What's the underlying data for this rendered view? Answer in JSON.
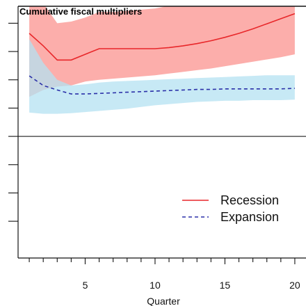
{
  "chart_data": {
    "type": "line",
    "title": "Cumulative fiscal multipliers",
    "xlabel": "Quarter",
    "ylabel": "",
    "xlim": [
      0.2,
      20.8
    ],
    "ylim": [
      -2.15,
      2.3
    ],
    "x_ticks": [
      5,
      10,
      15,
      20
    ],
    "x_minor_ticks": [
      1,
      2,
      3,
      4,
      5,
      6,
      7,
      8,
      9,
      10,
      11,
      12,
      13,
      14,
      15,
      16,
      17,
      18,
      19,
      20
    ],
    "y_ticks": [
      -1.5,
      -1.0,
      -0.5,
      0.0,
      0.5,
      1.0,
      1.5,
      2.0
    ],
    "zero_line": 0,
    "grid": false,
    "legend_position": "bottom-right",
    "x": [
      1,
      2,
      3,
      4,
      5,
      6,
      7,
      8,
      9,
      10,
      11,
      12,
      13,
      14,
      15,
      16,
      17,
      18,
      19,
      20
    ],
    "series": [
      {
        "name": "Recession",
        "style": "solid",
        "color": "#e8272a",
        "band_color": "#fca5a2",
        "values": [
          1.82,
          1.6,
          1.35,
          1.35,
          1.45,
          1.55,
          1.55,
          1.55,
          1.55,
          1.55,
          1.57,
          1.6,
          1.64,
          1.69,
          1.75,
          1.82,
          1.9,
          1.99,
          2.08,
          2.17
        ],
        "band_lower": [
          0.7,
          0.82,
          0.88,
          0.9,
          0.97,
          1.0,
          1.02,
          1.04,
          1.06,
          1.08,
          1.11,
          1.14,
          1.17,
          1.2,
          1.24,
          1.28,
          1.32,
          1.36,
          1.4,
          1.45
        ],
        "band_upper": [
          2.65,
          2.35,
          2.0,
          2.03,
          2.1,
          2.2,
          2.2,
          2.22,
          2.24,
          2.26,
          2.31,
          2.37,
          2.44,
          2.52,
          2.61,
          2.71,
          2.82,
          2.93,
          3.05,
          3.18
        ]
      },
      {
        "name": "Expansion",
        "style": "dashed",
        "color": "#2a2fa8",
        "band_color": "#b4e2f2",
        "values": [
          1.07,
          0.9,
          0.82,
          0.75,
          0.75,
          0.76,
          0.77,
          0.78,
          0.79,
          0.8,
          0.81,
          0.82,
          0.83,
          0.83,
          0.84,
          0.84,
          0.84,
          0.84,
          0.84,
          0.85
        ],
        "band_lower": [
          0.42,
          0.4,
          0.4,
          0.41,
          0.43,
          0.45,
          0.47,
          0.49,
          0.52,
          0.55,
          0.57,
          0.59,
          0.61,
          0.62,
          0.63,
          0.63,
          0.64,
          0.64,
          0.64,
          0.65
        ],
        "band_upper": [
          1.72,
          1.3,
          1.0,
          0.9,
          0.92,
          0.95,
          0.97,
          0.98,
          0.99,
          1.0,
          1.01,
          1.02,
          1.03,
          1.04,
          1.05,
          1.06,
          1.07,
          1.08,
          1.08,
          1.08
        ]
      }
    ]
  }
}
